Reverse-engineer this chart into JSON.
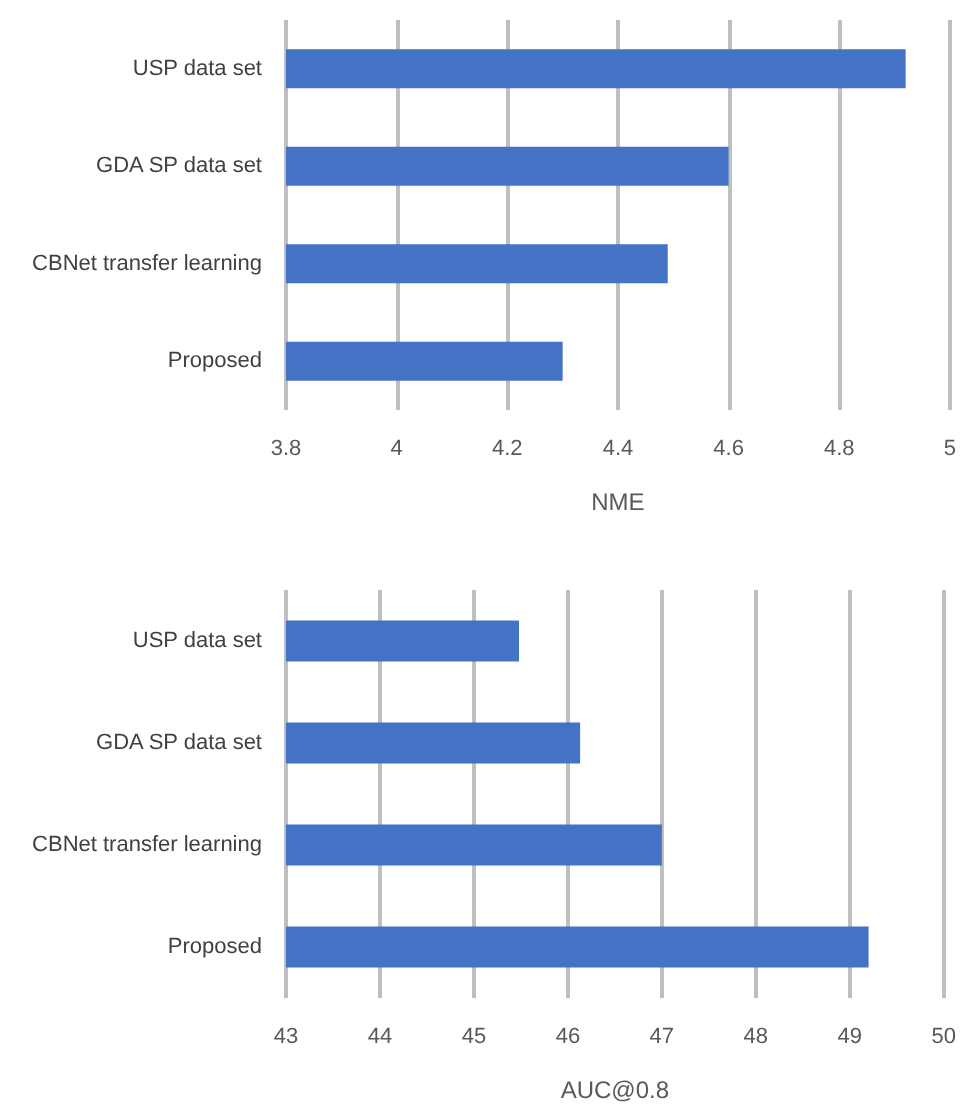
{
  "chart_data": [
    {
      "type": "bar",
      "orientation": "horizontal",
      "xlabel": "NME",
      "categories": [
        "USP data set",
        "GDA SP data set",
        "CBNet transfer learning",
        "Proposed"
      ],
      "values": [
        4.92,
        4.6,
        4.49,
        4.3
      ],
      "color": "#4472c4",
      "xlim": [
        3.8,
        5
      ],
      "xticks": [
        3.8,
        4,
        4.2,
        4.4,
        4.6,
        4.8,
        5
      ],
      "grid": "x"
    },
    {
      "type": "bar",
      "orientation": "horizontal",
      "xlabel": "AUC@0.8",
      "categories": [
        "USP data set",
        "GDA SP data set",
        "CBNet transfer learning",
        "Proposed"
      ],
      "values": [
        45.48,
        46.13,
        47.0,
        49.2
      ],
      "color": "#4472c4",
      "xlim": [
        43,
        50
      ],
      "xticks": [
        43,
        44,
        45,
        46,
        47,
        48,
        49,
        50
      ],
      "grid": "x"
    }
  ]
}
